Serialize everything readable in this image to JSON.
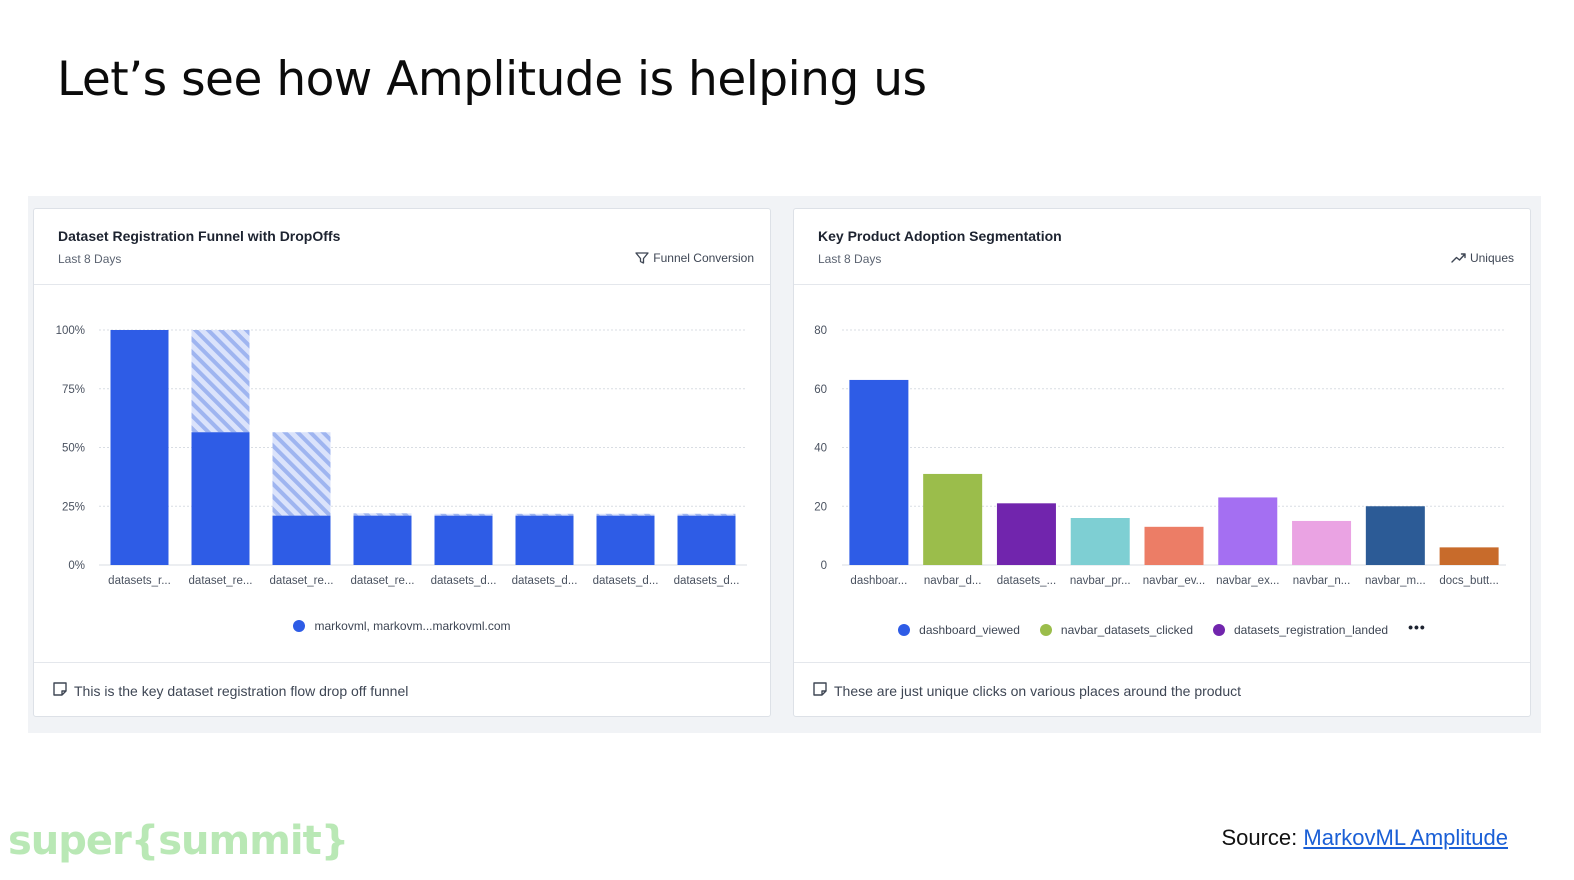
{
  "slide": {
    "title": "Let’s see how Amplitude is helping us",
    "brand": "super{summit}",
    "source_label": "Source:",
    "source_link": "MarkovML Amplitude"
  },
  "funnel_card": {
    "title": "Dataset Registration Funnel with DropOffs",
    "range": "Last 8 Days",
    "metric": "Funnel Conversion",
    "legend": "markovml, markovm...markovml.com",
    "note": "This is the key dataset registration flow drop off funnel"
  },
  "adoption_card": {
    "title": "Key Product Adoption Segmentation",
    "range": "Last 8 Days",
    "metric": "Uniques",
    "legend": [
      {
        "label": "dashboard_viewed",
        "color": "#2e5ce6"
      },
      {
        "label": "navbar_datasets_clicked",
        "color": "#9bbd4b"
      },
      {
        "label": "datasets_registration_landed",
        "color": "#7125ad"
      }
    ],
    "legend_more": "•••",
    "note": "These are just unique clicks on various places around the product"
  },
  "chart_data": [
    {
      "type": "bar",
      "title": "Dataset Registration Funnel with DropOffs",
      "categories": [
        "datasets_r...",
        "dataset_re...",
        "dataset_re...",
        "dataset_re...",
        "datasets_d...",
        "datasets_d...",
        "datasets_d...",
        "datasets_d..."
      ],
      "series": [
        {
          "name": "markovml, markovm...markovml.com",
          "values": [
            100,
            56.5,
            21,
            21,
            21,
            21,
            21,
            21
          ],
          "color": "#2e5ce6"
        }
      ],
      "dropoff_from_previous": [
        0,
        43.5,
        35.5,
        1,
        0.8,
        0.8,
        0.8,
        0.8
      ],
      "yticks": [
        "0%",
        "25%",
        "50%",
        "75%",
        "100%"
      ],
      "ylim": [
        0,
        100
      ],
      "grid": true,
      "legend_position": "bottom"
    },
    {
      "type": "bar",
      "title": "Key Product Adoption Segmentation",
      "categories": [
        "dashboar...",
        "navbar_d...",
        "datasets_...",
        "navbar_pr...",
        "navbar_ev...",
        "navbar_ex...",
        "navbar_n...",
        "navbar_m...",
        "docs_butt..."
      ],
      "values": [
        63,
        31,
        21,
        16,
        13,
        23,
        15,
        20,
        6
      ],
      "colors": [
        "#2e5ce6",
        "#9bbd4b",
        "#7125ad",
        "#7ecfd3",
        "#ec7d66",
        "#a46ff2",
        "#eaa3e3",
        "#2c5b96",
        "#c86b2b"
      ],
      "yticks": [
        "0",
        "20",
        "40",
        "60",
        "80"
      ],
      "ylim": [
        0,
        80
      ],
      "grid": true,
      "legend_position": "bottom"
    }
  ]
}
